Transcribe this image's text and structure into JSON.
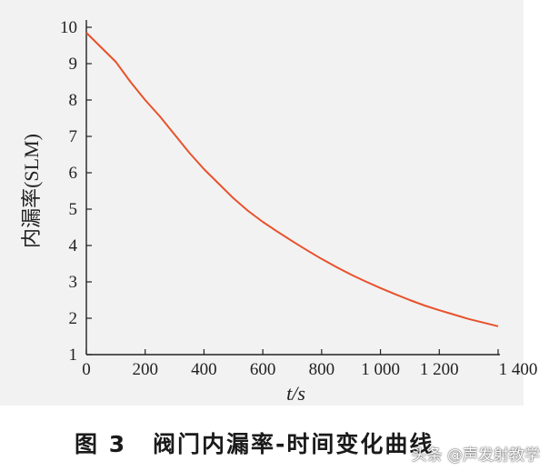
{
  "chart_data": {
    "type": "line",
    "title": "",
    "xlabel": "t/s",
    "ylabel": "内漏率(SLM)",
    "xlim": [
      0,
      1400
    ],
    "ylim": [
      1,
      10
    ],
    "x_ticks": [
      0,
      200,
      400,
      600,
      800,
      1000,
      1200,
      1400
    ],
    "x_tick_labels": [
      "0",
      "200",
      "400",
      "600",
      "800",
      "1 000",
      "1 200",
      "1 400"
    ],
    "y_ticks": [
      1,
      2,
      3,
      4,
      5,
      6,
      7,
      8,
      9,
      10
    ],
    "y_tick_labels": [
      "1",
      "2",
      "3",
      "4",
      "5",
      "6",
      "7",
      "8",
      "9",
      "10"
    ],
    "grid": false,
    "series": [
      {
        "color": "#e8512c",
        "x": [
          0,
          50,
          100,
          150,
          200,
          250,
          300,
          350,
          400,
          450,
          500,
          550,
          600,
          650,
          700,
          750,
          800,
          850,
          900,
          950,
          1000,
          1050,
          1100,
          1150,
          1200,
          1250,
          1300,
          1350,
          1400
        ],
        "y": [
          9.85,
          9.45,
          9.05,
          8.5,
          8.0,
          7.55,
          7.05,
          6.55,
          6.1,
          5.7,
          5.3,
          4.95,
          4.65,
          4.38,
          4.12,
          3.87,
          3.63,
          3.41,
          3.2,
          3.01,
          2.83,
          2.66,
          2.5,
          2.35,
          2.22,
          2.1,
          1.98,
          1.88,
          1.78
        ]
      }
    ]
  },
  "caption": {
    "number": "图 3",
    "title": "阀门内漏率-时间变化曲线"
  },
  "watermark": "头条 @声发射教学"
}
